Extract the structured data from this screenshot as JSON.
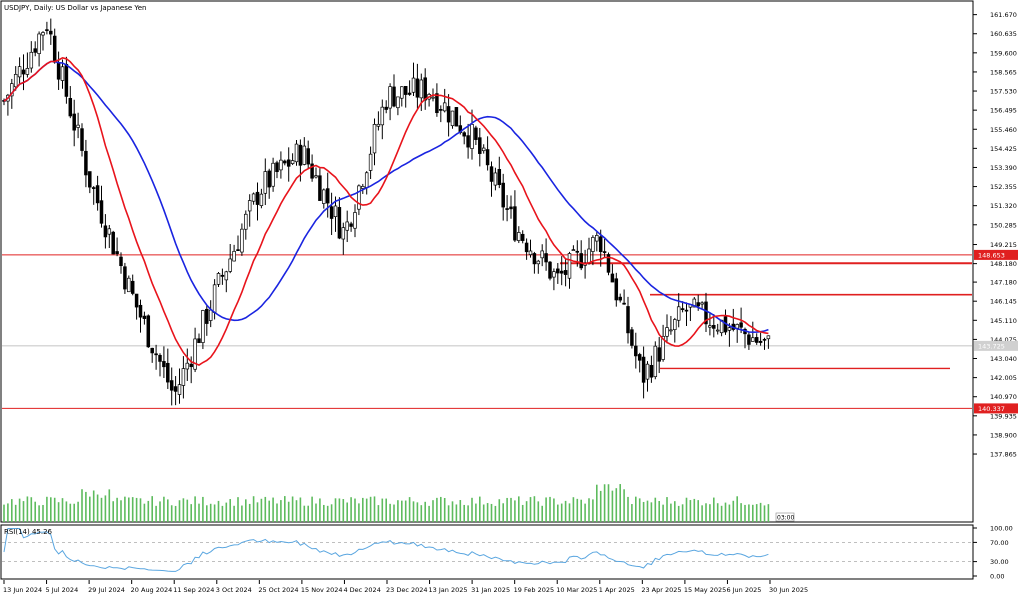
{
  "header": {
    "symbol_line": "USDJPY, Daily:  US Dollar vs Japanese Yen"
  },
  "colors": {
    "background": "#ffffff",
    "candle": "#000000",
    "ma_fast": "#e8141c",
    "ma_slow": "#1a24e0",
    "level_line": "#e02020",
    "volume": "#5dbb5d",
    "rsi_line": "#5aa6e0",
    "price_label_bg": "#d0d0d0"
  },
  "chart_data": [
    {
      "type": "candlestick",
      "title": "USDJPY, Daily:  US Dollar vs Japanese Yen",
      "ylim": [
        137.0,
        162.3
      ],
      "price_axis_ticks": [
        "161.670",
        "160.635",
        "159.600",
        "158.565",
        "157.530",
        "156.495",
        "155.460",
        "154.425",
        "153.390",
        "152.355",
        "151.320",
        "150.285",
        "149.215",
        "148.180",
        "147.180",
        "146.145",
        "145.110",
        "144.075",
        "143.040",
        "142.005",
        "140.970",
        "139.935",
        "138.900",
        "137.865"
      ],
      "date_axis_ticks": [
        "13 Jun 2024",
        "5 Jul 2024",
        "29 Jul 2024",
        "20 Aug 2024",
        "11 Sep 2024",
        "3 Oct 2024",
        "25 Oct 2024",
        "15 Nov 2024",
        "4 Dec 2024",
        "23 Dec 2024",
        "13 Jan 2025",
        "31 Jan 2025",
        "19 Feb 2025",
        "10 Mar 2025",
        "1 Apr 2025",
        "23 Apr 2025",
        "15 May 2025",
        "6 Jun 2025",
        "30 Jun 2025"
      ],
      "approximate_close_path": [
        {
          "date": "13 Jun 2024",
          "close": 157.0
        },
        {
          "date": "5 Jul 2024",
          "close": 161.3
        },
        {
          "date": "29 Jul 2024",
          "close": 152.8
        },
        {
          "date": "20 Aug 2024",
          "close": 146.5
        },
        {
          "date": "11 Sep 2024",
          "close": 141.0
        },
        {
          "date": "3 Oct 2024",
          "close": 146.8
        },
        {
          "date": "25 Oct 2024",
          "close": 152.2
        },
        {
          "date": "15 Nov 2024",
          "close": 154.3
        },
        {
          "date": "4 Dec 2024",
          "close": 149.8
        },
        {
          "date": "23 Dec 2024",
          "close": 157.3
        },
        {
          "date": "13 Jan 2025",
          "close": 157.6
        },
        {
          "date": "31 Jan 2025",
          "close": 155.0
        },
        {
          "date": "19 Feb 2025",
          "close": 150.2
        },
        {
          "date": "10 Mar 2025",
          "close": 147.3
        },
        {
          "date": "1 Apr 2025",
          "close": 149.6
        },
        {
          "date": "23 Apr 2025",
          "close": 142.0
        },
        {
          "date": "15 May 2025",
          "close": 145.7
        },
        {
          "date": "6 Jun 2025",
          "close": 144.8
        },
        {
          "date": "30 Jun 2025",
          "close": 143.7
        }
      ],
      "moving_averages": [
        "fast (red)",
        "slow (blue)"
      ],
      "horizontal_levels": [
        {
          "price": 148.653,
          "label": "148.653",
          "highlighted": true
        },
        {
          "price": 148.2,
          "label": "",
          "highlighted": false
        },
        {
          "price": 146.5,
          "label": "",
          "highlighted": false
        },
        {
          "price": 142.5,
          "label": "",
          "highlighted": false
        },
        {
          "price": 140.337,
          "label": "140.337",
          "highlighted": true
        }
      ],
      "current_price_label": "143.725",
      "countdown_label": "03:00",
      "grid": false
    },
    {
      "type": "line",
      "title": "RSI(14) 45.26",
      "ylim": [
        0,
        100
      ],
      "axis_ticks": [
        "100.00",
        "70.00",
        "30.00",
        "0.00"
      ],
      "levels": [
        70,
        30
      ],
      "last_value": 45.26
    }
  ]
}
